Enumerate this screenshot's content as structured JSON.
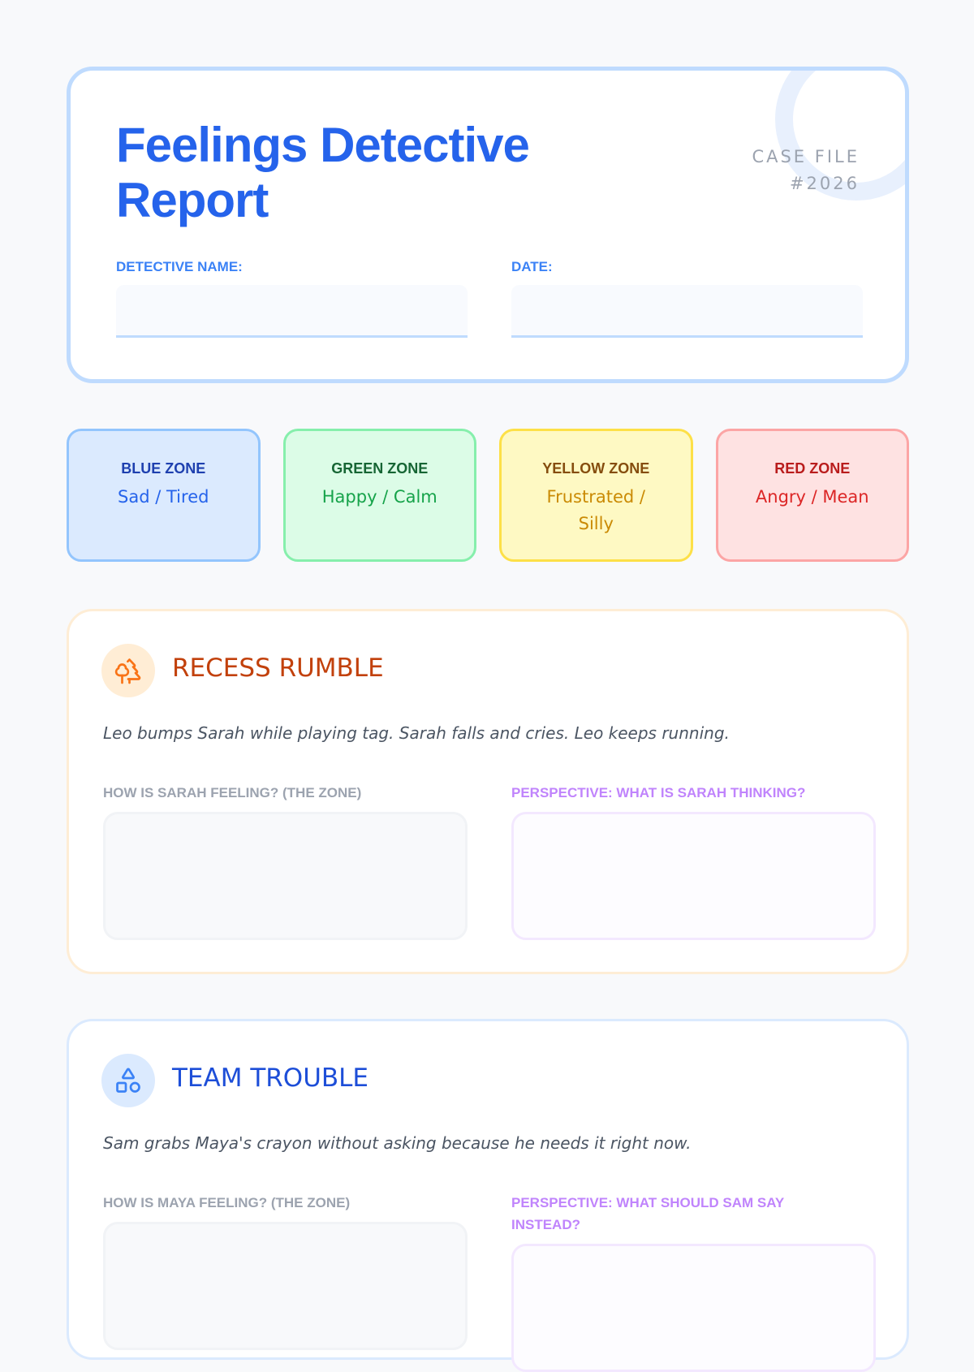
{
  "header": {
    "title": "Feelings Detective Report",
    "case_file_label": "CASE FILE",
    "case_number": "#2026",
    "name_label": "DETECTIVE NAME:",
    "date_label": "DATE:",
    "name_value": "",
    "date_value": ""
  },
  "zones": [
    {
      "name": "BLUE ZONE",
      "desc": "Sad / Tired",
      "bg": "#dbeafe",
      "border": "#93c5fd",
      "title_color": "#1e40af",
      "desc_color": "#2563eb"
    },
    {
      "name": "GREEN ZONE",
      "desc": "Happy / Calm",
      "bg": "#dcfce7",
      "border": "#86efac",
      "title_color": "#166534",
      "desc_color": "#16a34a"
    },
    {
      "name": "YELLOW ZONE",
      "desc": "Frustrated / Silly",
      "bg": "#fef9c3",
      "border": "#fde047",
      "title_color": "#854d0e",
      "desc_color": "#ca8a04"
    },
    {
      "name": "RED ZONE",
      "desc": "Angry / Mean",
      "bg": "#fee2e2",
      "border": "#fca5a5",
      "title_color": "#b91c1c",
      "desc_color": "#dc2626"
    }
  ],
  "cases": [
    {
      "icon": "trees-icon",
      "title": "RECESS RUMBLE",
      "story": "Leo bumps Sarah while playing tag. Sarah falls and cries. Leo keeps running.",
      "q1": "HOW IS SARAH FEELING? (THE ZONE)",
      "q2": "PERSPECTIVE: WHAT IS SARAH THINKING?",
      "a1": "",
      "a2": ""
    },
    {
      "icon": "shapes-icon",
      "title": "TEAM TROUBLE",
      "story": "Sam grabs Maya's crayon without asking because he needs it right now.",
      "q1": "HOW IS MAYA FEELING? (THE ZONE)",
      "q2": "PERSPECTIVE: WHAT SHOULD SAM SAY INSTEAD?",
      "a1": "",
      "a2": ""
    }
  ]
}
